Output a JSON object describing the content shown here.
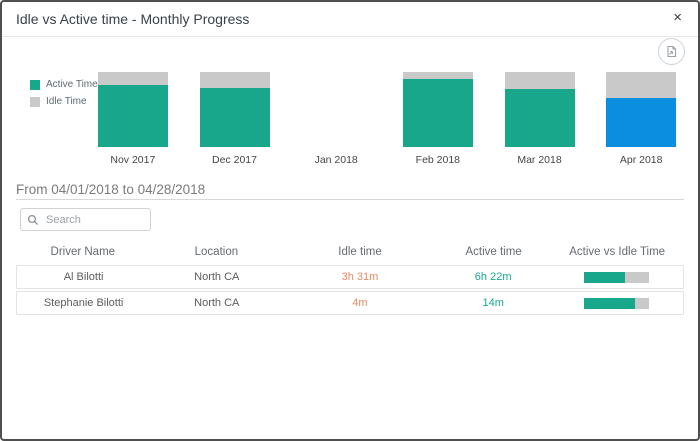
{
  "modal": {
    "title": "Idle vs Active time - Monthly Progress"
  },
  "icons": {
    "close": "×",
    "search": "magnifier",
    "export": "export-document"
  },
  "colors": {
    "active_teal": "#19a78c",
    "idle_gray": "#c9c9c9",
    "selected_blue": "#0b8de0",
    "idle_text_orange": "#e78a62",
    "active_text_teal": "#18a88d"
  },
  "chart_data": {
    "type": "bar",
    "stacked": true,
    "stacked_mode": "percent",
    "categories": [
      "Nov 2017",
      "Dec 2017",
      "Jan 2018",
      "Feb 2018",
      "Mar 2018",
      "Apr 2018"
    ],
    "series": [
      {
        "name": "Active Time",
        "color": "#19a78c",
        "values_pct": [
          83,
          79,
          0,
          91,
          78,
          66
        ]
      },
      {
        "name": "Idle Time",
        "color": "#c9c9c9",
        "values_pct": [
          17,
          21,
          0,
          9,
          22,
          34
        ]
      }
    ],
    "highlight": {
      "category": "Apr 2018",
      "active_color": "#0b8de0"
    },
    "legend_position": "left",
    "title": "",
    "xlabel": "",
    "ylabel": ""
  },
  "period": {
    "label": "From 04/01/2018 to 04/28/2018"
  },
  "search": {
    "placeholder": "Search"
  },
  "table": {
    "columns": [
      "Driver Name",
      "Location",
      "Idle time",
      "Active time",
      "Active vs Idle Time"
    ],
    "rows": [
      {
        "driver": "Al Bilotti",
        "location": "North CA",
        "idle": "3h 31m",
        "active": "6h 22m",
        "active_pct": 64
      },
      {
        "driver": "Stephanie Bilotti",
        "location": "North CA",
        "idle": "4m",
        "active": "14m",
        "active_pct": 78
      }
    ]
  }
}
